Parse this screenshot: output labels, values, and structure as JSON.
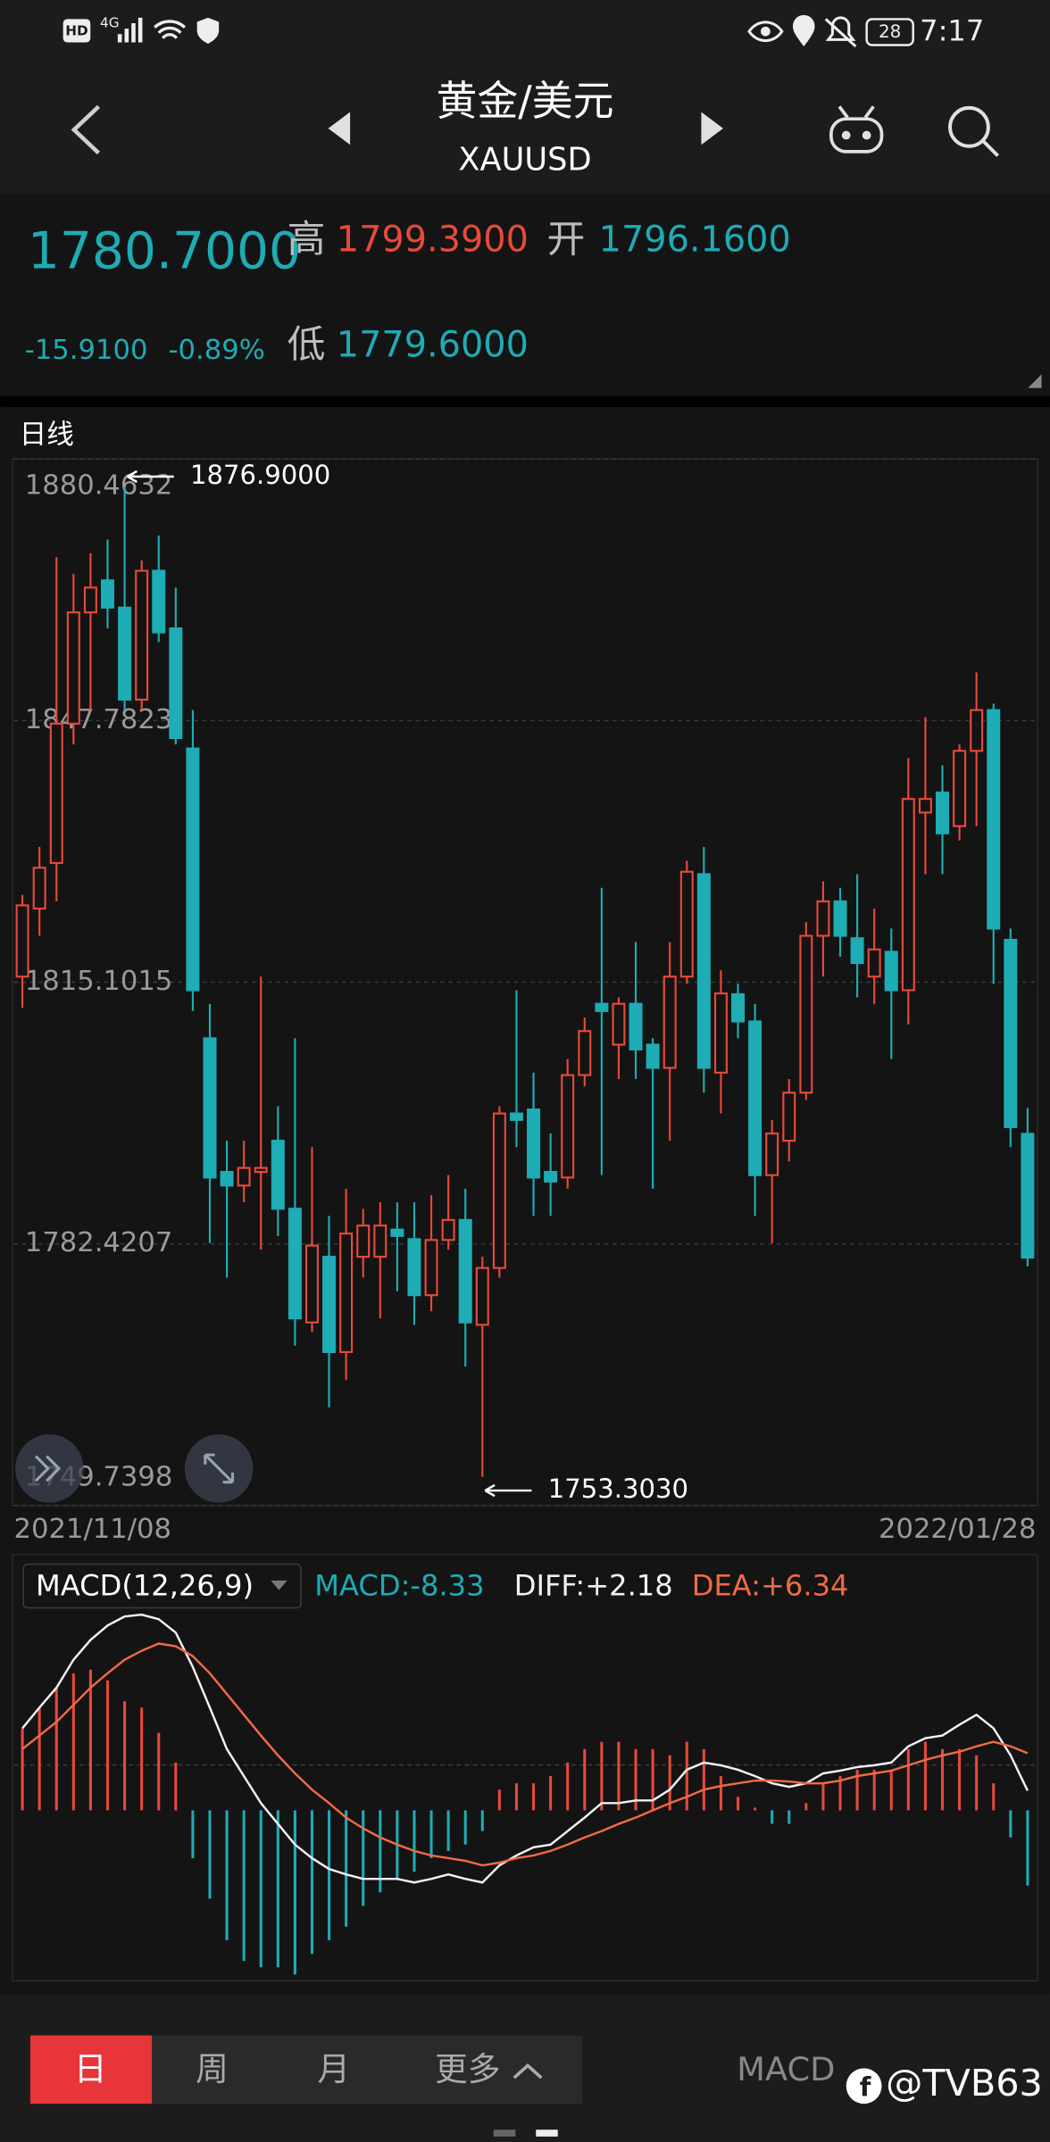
{
  "status_bar": {
    "hd": "HD",
    "network": "4G",
    "battery": "28",
    "time": "7:17"
  },
  "header": {
    "title": "黄金/美元",
    "symbol": "XAUUSD"
  },
  "quote": {
    "price": "1780.7000",
    "high_label": "高",
    "high": "1799.3900",
    "open_label": "开",
    "open": "1796.1600",
    "change": "-15.9100",
    "change_percent": "-0.89%",
    "low_label": "低",
    "low": "1779.6000"
  },
  "period_label": "日线",
  "chart_data": [
    {
      "type": "candlestick",
      "categories": [
        "2021/11/08",
        null,
        null,
        null,
        null,
        null,
        null,
        null,
        null,
        null,
        null,
        null,
        null,
        null,
        null,
        null,
        null,
        null,
        null,
        null,
        null,
        null,
        null,
        null,
        null,
        null,
        null,
        null,
        null,
        null,
        null,
        null,
        null,
        null,
        null,
        null,
        null,
        null,
        null,
        null,
        null,
        null,
        null,
        null,
        null,
        null,
        null,
        null,
        null,
        null,
        null,
        null,
        null,
        null,
        null,
        null,
        null,
        null,
        null,
        "2022/01/28"
      ],
      "open": [
        1815.8,
        1824.3,
        1830.0,
        1847.4,
        1861.3,
        1865.3,
        1861.9,
        1850.4,
        1866.5,
        1859.3,
        1844.3,
        1808.1,
        1791.4,
        1789.7,
        1791.4,
        1795.3,
        1786.8,
        1772.6,
        1780.8,
        1768.9,
        1780.8,
        1780.8,
        1784.2,
        1783.0,
        1776.0,
        1782.9,
        1785.4,
        1772.3,
        1779.4,
        1798.7,
        1799.2,
        1791.4,
        1790.7,
        1803.5,
        1812.4,
        1807.3,
        1812.4,
        1807.3,
        1804.4,
        1815.8,
        1828.6,
        1803.8,
        1813.6,
        1810.2,
        1791.0,
        1795.3,
        1801.3,
        1820.9,
        1825.2,
        1820.6,
        1815.8,
        1818.9,
        1814.1,
        1836.3,
        1838.8,
        1834.6,
        1844.0,
        1849.1,
        1820.4,
        1796.16
      ],
      "high": [
        1826.0,
        1832.0,
        1868.2,
        1866.1,
        1868.7,
        1870.4,
        1876.9,
        1867.8,
        1870.9,
        1864.4,
        1849.1,
        1812.4,
        1795.3,
        1795.3,
        1815.8,
        1799.6,
        1808.1,
        1794.5,
        1785.9,
        1789.3,
        1786.8,
        1787.6,
        1787.6,
        1787.6,
        1788.5,
        1791.0,
        1789.3,
        1780.8,
        1799.6,
        1814.1,
        1803.8,
        1796.2,
        1805.5,
        1810.7,
        1826.9,
        1813.2,
        1820.1,
        1808.1,
        1820.1,
        1830.3,
        1832.0,
        1816.6,
        1814.9,
        1812.4,
        1797.9,
        1803.0,
        1822.6,
        1827.7,
        1826.9,
        1828.6,
        1824.3,
        1821.8,
        1843.1,
        1848.2,
        1842.2,
        1844.8,
        1853.8,
        1849.9,
        1821.8,
        1799.39
      ],
      "low": [
        1811.9,
        1820.9,
        1825.2,
        1844.8,
        1849.1,
        1859.3,
        1849.1,
        1849.1,
        1857.6,
        1844.8,
        1811.5,
        1782.5,
        1778.2,
        1787.6,
        1781.7,
        1783.4,
        1769.7,
        1771.4,
        1762.0,
        1765.4,
        1778.2,
        1773.1,
        1776.5,
        1772.3,
        1774.0,
        1781.7,
        1767.1,
        1753.303,
        1778.2,
        1794.5,
        1785.9,
        1785.9,
        1789.3,
        1802.1,
        1791.0,
        1803.0,
        1803.0,
        1789.3,
        1795.3,
        1814.9,
        1801.3,
        1798.7,
        1808.1,
        1785.9,
        1782.5,
        1792.7,
        1800.4,
        1815.8,
        1818.3,
        1813.2,
        1812.4,
        1805.5,
        1809.8,
        1828.6,
        1828.6,
        1832.8,
        1834.6,
        1814.9,
        1794.5,
        1779.6
      ],
      "close": [
        1824.7,
        1829.4,
        1847.4,
        1861.3,
        1864.4,
        1861.9,
        1850.4,
        1866.5,
        1858.8,
        1845.6,
        1814.1,
        1790.7,
        1789.7,
        1791.9,
        1791.9,
        1786.8,
        1773.1,
        1782.2,
        1768.9,
        1783.7,
        1784.7,
        1784.7,
        1783.4,
        1776.0,
        1782.9,
        1785.4,
        1772.6,
        1779.4,
        1798.7,
        1797.9,
        1790.7,
        1790.2,
        1803.5,
        1809.0,
        1811.5,
        1812.4,
        1806.7,
        1804.4,
        1815.8,
        1828.9,
        1804.4,
        1813.7,
        1810.2,
        1791.0,
        1796.2,
        1801.3,
        1820.9,
        1825.2,
        1820.9,
        1817.5,
        1819.2,
        1814.1,
        1838.0,
        1838.0,
        1833.7,
        1844.0,
        1849.1,
        1821.8,
        1797.0,
        1780.7
      ],
      "ylim": [
        1749.7398,
        1880.4632
      ],
      "yticks": [
        1880.4632,
        1847.7823,
        1815.1015,
        1782.4207,
        1749.7398
      ],
      "grid": true,
      "colors": {
        "up": "#e8493a",
        "down": "#1eacb5"
      },
      "annotations": [
        {
          "value": 1876.9,
          "label": "1876.9000"
        },
        {
          "value": 1753.303,
          "label": "1753.3030"
        }
      ]
    },
    {
      "type": "macd",
      "title": "MACD(12,26,9)",
      "series": [
        {
          "name": "MACD:-8.33",
          "color": "#1eacb5",
          "values": [
            9.1,
            11.4,
            13.6,
            15.2,
            15.6,
            14.4,
            12.1,
            11.4,
            8.6,
            5.3,
            -5.3,
            -9.8,
            -14.4,
            -16.7,
            -17.4,
            -17.4,
            -18.2,
            -15.9,
            -14.4,
            -12.9,
            -10.6,
            -9.1,
            -7.6,
            -6.8,
            -5.3,
            -4.5,
            -3.8,
            -2.3,
            2.3,
            3.0,
            3.0,
            3.8,
            5.3,
            6.8,
            7.6,
            7.6,
            6.8,
            6.8,
            6.1,
            7.6,
            6.8,
            3.8,
            1.5,
            0.3,
            -1.5,
            -1.5,
            0.8,
            3.0,
            3.8,
            4.5,
            4.5,
            4.5,
            6.8,
            7.6,
            6.8,
            6.8,
            6.1,
            3.0,
            -3.0,
            -8.33
          ]
        },
        {
          "name": "DIFF:+2.18",
          "color": "#f2f2f2",
          "values": [
            9.1,
            11.4,
            13.6,
            16.7,
            18.9,
            20.5,
            21.5,
            21.7,
            21.2,
            19.7,
            15.9,
            11.4,
            6.8,
            3.8,
            0.8,
            -1.5,
            -3.8,
            -5.3,
            -6.5,
            -7.1,
            -7.6,
            -7.6,
            -7.6,
            -8.0,
            -7.6,
            -7.1,
            -7.6,
            -8.0,
            -6.1,
            -5.0,
            -4.1,
            -3.8,
            -2.3,
            -0.8,
            0.8,
            0.8,
            1.1,
            1.1,
            2.3,
            4.5,
            5.3,
            5.0,
            4.5,
            3.8,
            3.0,
            2.6,
            3.0,
            4.1,
            4.4,
            4.8,
            5.0,
            5.3,
            7.1,
            8.0,
            8.3,
            9.5,
            10.6,
            9.1,
            6.1,
            2.18
          ]
        },
        {
          "name": "DEA:+6.34",
          "color": "#f06a45",
          "values": [
            6.8,
            8.3,
            9.8,
            11.7,
            13.6,
            15.2,
            16.7,
            17.7,
            18.5,
            18.2,
            17.1,
            15.2,
            12.9,
            10.6,
            8.3,
            6.1,
            4.1,
            2.3,
            0.8,
            -0.8,
            -2.0,
            -3.0,
            -3.8,
            -4.5,
            -5.0,
            -5.3,
            -5.6,
            -6.1,
            -5.8,
            -5.3,
            -5.0,
            -4.5,
            -3.8,
            -3.0,
            -2.3,
            -1.5,
            -0.8,
            0,
            0.8,
            1.5,
            2.3,
            2.7,
            3.0,
            3.3,
            3.3,
            3.2,
            3.0,
            3.0,
            3.3,
            3.8,
            4.1,
            4.4,
            5.0,
            5.6,
            6.1,
            6.5,
            7.1,
            7.6,
            7.1,
            6.34
          ]
        }
      ],
      "ylim": [
        -18.9,
        27.3
      ],
      "colors": {
        "up": "#e8493a",
        "down": "#1eacb5"
      }
    }
  ],
  "tabs": [
    "日",
    "周",
    "月",
    "更多"
  ],
  "indicator_button": "MACD",
  "watermark": "@TVB63"
}
